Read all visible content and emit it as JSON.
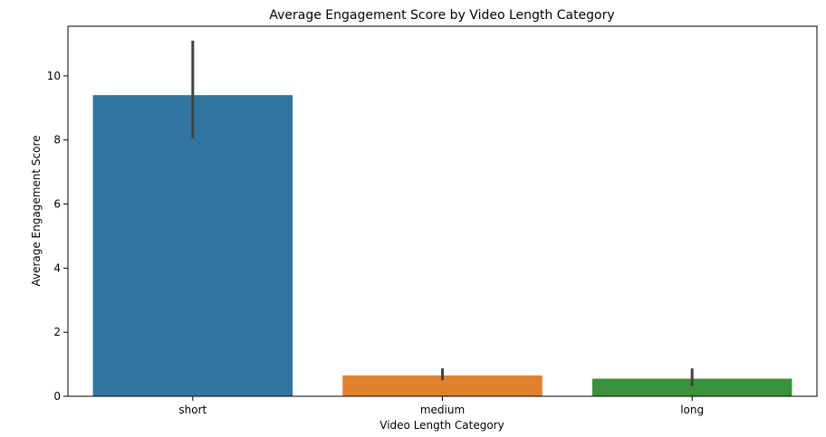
{
  "chart_data": {
    "type": "bar",
    "title": "Average Engagement Score by Video Length Category",
    "xlabel": "Video Length Category",
    "ylabel": "Average Engagement Score",
    "categories": [
      "short",
      "medium",
      "long"
    ],
    "values": [
      9.4,
      0.65,
      0.55
    ],
    "error_low": [
      8.05,
      0.5,
      0.32
    ],
    "error_high": [
      11.1,
      0.87,
      0.87
    ],
    "colors": [
      "#3274a1",
      "#e1812c",
      "#3a923a"
    ],
    "error_color": "#424242",
    "ylim": [
      0,
      11.55
    ],
    "yticks": [
      0,
      2,
      4,
      6,
      8,
      10
    ],
    "grid": false,
    "legend": "none"
  }
}
